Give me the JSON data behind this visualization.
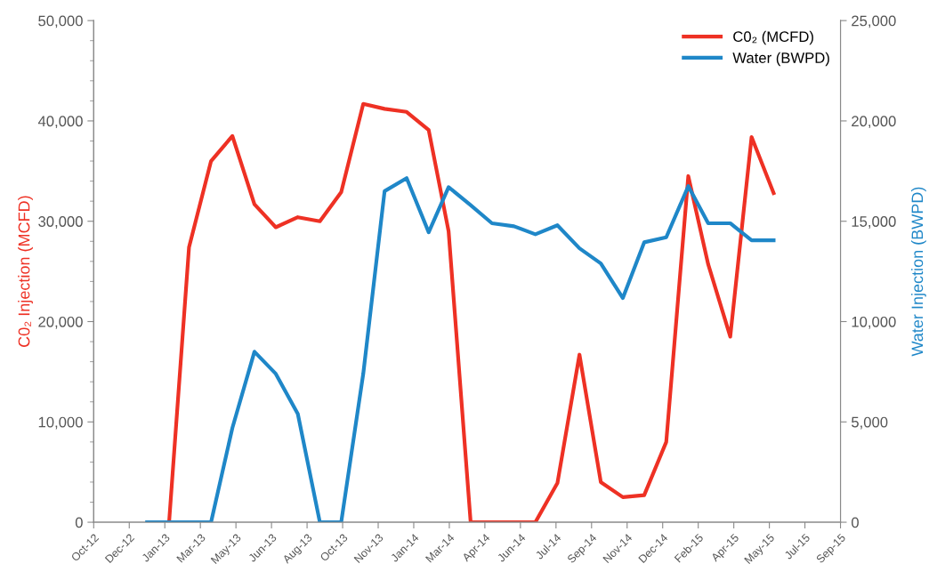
{
  "chart_data": {
    "type": "line",
    "ylabel": "C0₂ Injection (MCFD)",
    "y2label": "Water Injection (BWPD)",
    "xlim": [
      "2012-10-18",
      "2015-09-03"
    ],
    "xticks": [
      {
        "value": "2012-10-18",
        "label": "Oct-12"
      },
      {
        "value": "2012-12-07",
        "label": "Dec-12"
      },
      {
        "value": "2013-01-26",
        "label": "Jan-13"
      },
      {
        "value": "2013-03-17",
        "label": "Mar-13"
      },
      {
        "value": "2013-05-06",
        "label": "May-13"
      },
      {
        "value": "2013-06-25",
        "label": "Jun-13"
      },
      {
        "value": "2013-08-14",
        "label": "Aug-13"
      },
      {
        "value": "2013-10-03",
        "label": "Oct-13"
      },
      {
        "value": "2013-11-22",
        "label": "Nov-13"
      },
      {
        "value": "2014-01-11",
        "label": "Jan-14"
      },
      {
        "value": "2014-03-02",
        "label": "Mar-14"
      },
      {
        "value": "2014-04-21",
        "label": "Apr-14"
      },
      {
        "value": "2014-06-10",
        "label": "Jun-14"
      },
      {
        "value": "2014-07-30",
        "label": "Jul-14"
      },
      {
        "value": "2014-09-18",
        "label": "Sep-14"
      },
      {
        "value": "2014-11-07",
        "label": "Nov-14"
      },
      {
        "value": "2014-12-27",
        "label": "Dec-14"
      },
      {
        "value": "2015-02-15",
        "label": "Feb-15"
      },
      {
        "value": "2015-04-06",
        "label": "Apr-15"
      },
      {
        "value": "2015-05-26",
        "label": "May-15"
      },
      {
        "value": "2015-07-15",
        "label": "Jul-15"
      },
      {
        "value": "2015-09-03",
        "label": "Sep-15"
      }
    ],
    "ylim": [
      0,
      50000
    ],
    "yticks": [
      {
        "value": 0,
        "label": "0"
      },
      {
        "value": 10000,
        "label": "10,000"
      },
      {
        "value": 20000,
        "label": "20,000"
      },
      {
        "value": 30000,
        "label": "30,000"
      },
      {
        "value": 40000,
        "label": "40,000"
      },
      {
        "value": 50000,
        "label": "50,000"
      }
    ],
    "y2lim": [
      0,
      25000
    ],
    "y2ticks": [
      {
        "value": 0,
        "label": "0"
      },
      {
        "value": 5000,
        "label": "5,000"
      },
      {
        "value": 10000,
        "label": "10,000"
      },
      {
        "value": 15000,
        "label": "15,000"
      },
      {
        "value": 20000,
        "label": "20,000"
      },
      {
        "value": 25000,
        "label": "25,000"
      }
    ],
    "grid": false,
    "legend": "top right",
    "marker": "none",
    "line_style": "solid",
    "series": [
      {
        "name": "C0₂ (MCFD)",
        "color": "#ee3124",
        "x": [
          "2013-02-01",
          "2013-03-01",
          "2013-04-01",
          "2013-05-01",
          "2013-06-01",
          "2013-07-01",
          "2013-08-01",
          "2013-09-01",
          "2013-10-01",
          "2013-11-01",
          "2013-12-01",
          "2014-01-01",
          "2014-02-01",
          "2014-03-01",
          "2014-04-01",
          "2014-05-01",
          "2014-06-01",
          "2014-07-01",
          "2014-08-01",
          "2014-09-01",
          "2014-10-01",
          "2014-11-01",
          "2014-12-01",
          "2015-01-01",
          "2015-02-01",
          "2015-03-01",
          "2015-04-01",
          "2015-05-01",
          "2015-06-01"
        ],
        "values": [
          0,
          27400,
          36000,
          38500,
          31700,
          29400,
          30400,
          30000,
          32900,
          41700,
          41200,
          40900,
          39100,
          29000,
          0,
          0,
          0,
          0,
          3900,
          16700,
          4000,
          2500,
          2700,
          8000,
          34500,
          25700,
          18500,
          38400,
          32800
        ]
      },
      {
        "name": "Water (BWPD)",
        "color": "#1f87c8",
        "axis": "y2",
        "x": [
          "2013-01-01",
          "2013-02-01",
          "2013-03-01",
          "2013-04-01",
          "2013-05-01",
          "2013-06-01",
          "2013-07-01",
          "2013-08-01",
          "2013-09-01",
          "2013-10-01",
          "2013-11-01",
          "2013-12-01",
          "2014-01-01",
          "2014-02-01",
          "2014-03-01",
          "2014-04-01",
          "2014-05-01",
          "2014-06-01",
          "2014-07-01",
          "2014-08-01",
          "2014-09-01",
          "2014-10-01",
          "2014-11-01",
          "2014-12-01",
          "2015-01-01",
          "2015-02-01",
          "2015-03-01",
          "2015-04-01",
          "2015-05-01",
          "2015-06-01"
        ],
        "values": [
          0,
          0,
          0,
          0,
          4700,
          8500,
          7400,
          5400,
          0,
          0,
          7400,
          16500,
          17150,
          14450,
          16700,
          15800,
          14900,
          14750,
          14350,
          14800,
          13650,
          12900,
          11170,
          13950,
          14200,
          16750,
          14900,
          14900,
          14050,
          14050
        ]
      }
    ]
  }
}
